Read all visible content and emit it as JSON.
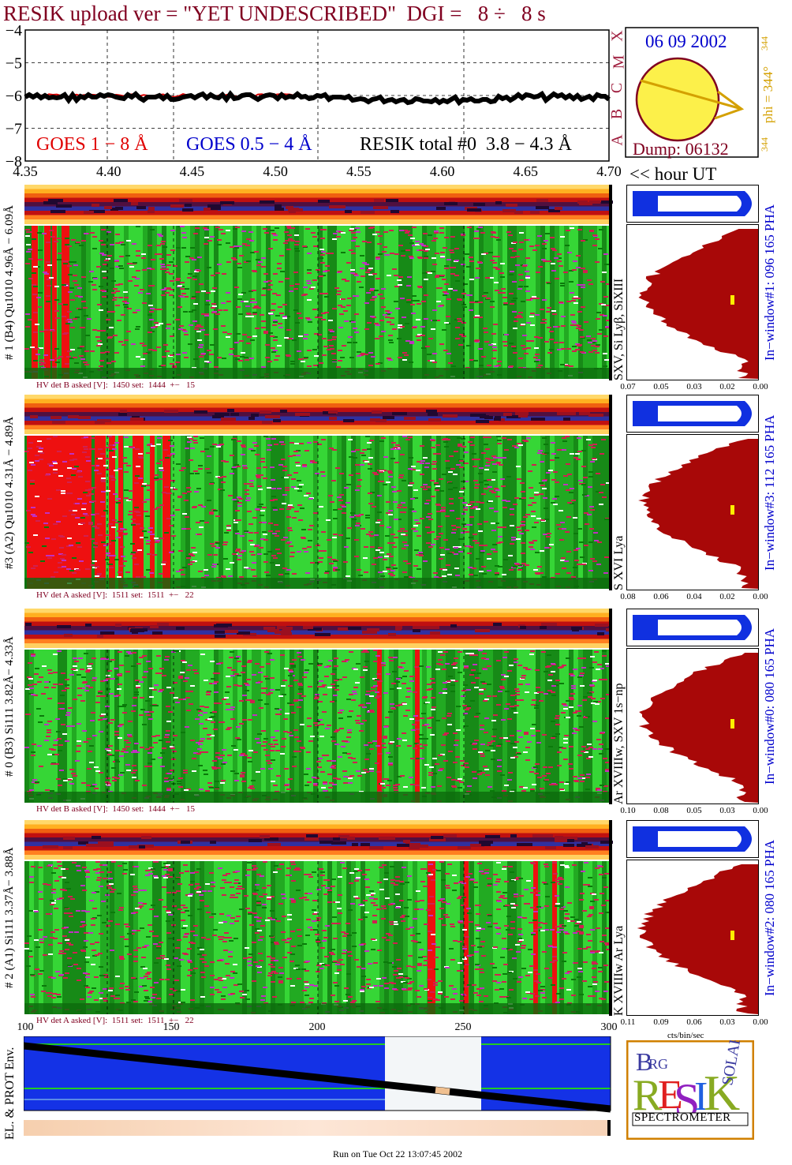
{
  "header": {
    "title": "RESIK upload ver = \"YET UNDESCRIBED\"  DGI =   8 ÷   8 s",
    "title_color": "#800020"
  },
  "goes_panel": {
    "y_ticks": [
      "−4",
      "−5",
      "−6",
      "−7",
      "−8"
    ],
    "legend": [
      {
        "text": "GOES 1 − 8 Å",
        "color": "#e00000"
      },
      {
        "text": "GOES 0.5 − 4 Å",
        "color": "#0000cc"
      },
      {
        "text": "RESIK total #0  3.8 − 4.3 Å",
        "color": "#000000"
      }
    ],
    "class_labels": [
      "X",
      "M",
      "C",
      "B",
      "A"
    ]
  },
  "sun_panel": {
    "date": "06 09 2002",
    "dump": "Dump: 06132",
    "phi_label": "phi = 344°",
    "phi_value_top": "344",
    "phi_value_bottom": "344"
  },
  "time_axis": {
    "ticks": [
      "4.35",
      "4.40",
      "4.45",
      "4.50",
      "4.55",
      "4.60",
      "4.65",
      "4.70"
    ],
    "unit_label": "<< hour UT"
  },
  "channels": [
    {
      "left_label": "# 1 (B4) Qu1010 4.96Å − 6.09Å",
      "right_label": "SXV, Si Lyβ, SiXIII",
      "hv": "HV det B asked [V]:  1450 set:  1444  +−   15",
      "window_label": "In−window#1:  096 165 PHA",
      "x_ticks": [
        "0.07",
        "0.05",
        "0.03",
        "0.02",
        "0.00"
      ]
    },
    {
      "left_label": "#3 (A2) Qu1010  4.31Å − 4.89Å",
      "right_label": "S XVI Lya",
      "hv": "HV det A asked [V]:  1511 set:  1511  +−   22",
      "window_label": "In−window#3:  112 165 PHA",
      "x_ticks": [
        "0.08",
        "0.06",
        "0.04",
        "0.02",
        "0.00"
      ]
    },
    {
      "left_label": "# 0 (B3) Si111  3.82Å− 4.33Å",
      "right_label": "Ar XVIIIw, SXV 1s−np",
      "hv": "HV det B asked [V]:  1450 set:  1444  +−   15",
      "window_label": "In−window#0:  080 165 PHA",
      "x_ticks": [
        "0.10",
        "0.08",
        "0.05",
        "0.03",
        "0.00"
      ]
    },
    {
      "left_label": "# 2 (A1) Si111  3.37Å− 3.88Å",
      "right_label": "K XVIIIw  Ar Lya",
      "hv": "HV det A asked [V]:  1511 set:  1511  +−   22",
      "window_label": "In−window#2:  080 165 PHA",
      "x_ticks": [
        "0.11",
        "0.09",
        "0.06",
        "0.03",
        "0.00"
      ]
    }
  ],
  "bottom_axis": {
    "ticks": [
      "100",
      "150",
      "200",
      "250",
      "300"
    ],
    "unit": "cts/bin/sec"
  },
  "env_label": "EL. & PROT Env.",
  "logo": {
    "text": "RESIK",
    "sub": "SPECTROMETER",
    "letters": [
      "B",
      "R",
      "G",
      "SOL",
      "A",
      "R"
    ]
  },
  "footer": "Run on Tue Oct 22 13:07:45 2002"
}
